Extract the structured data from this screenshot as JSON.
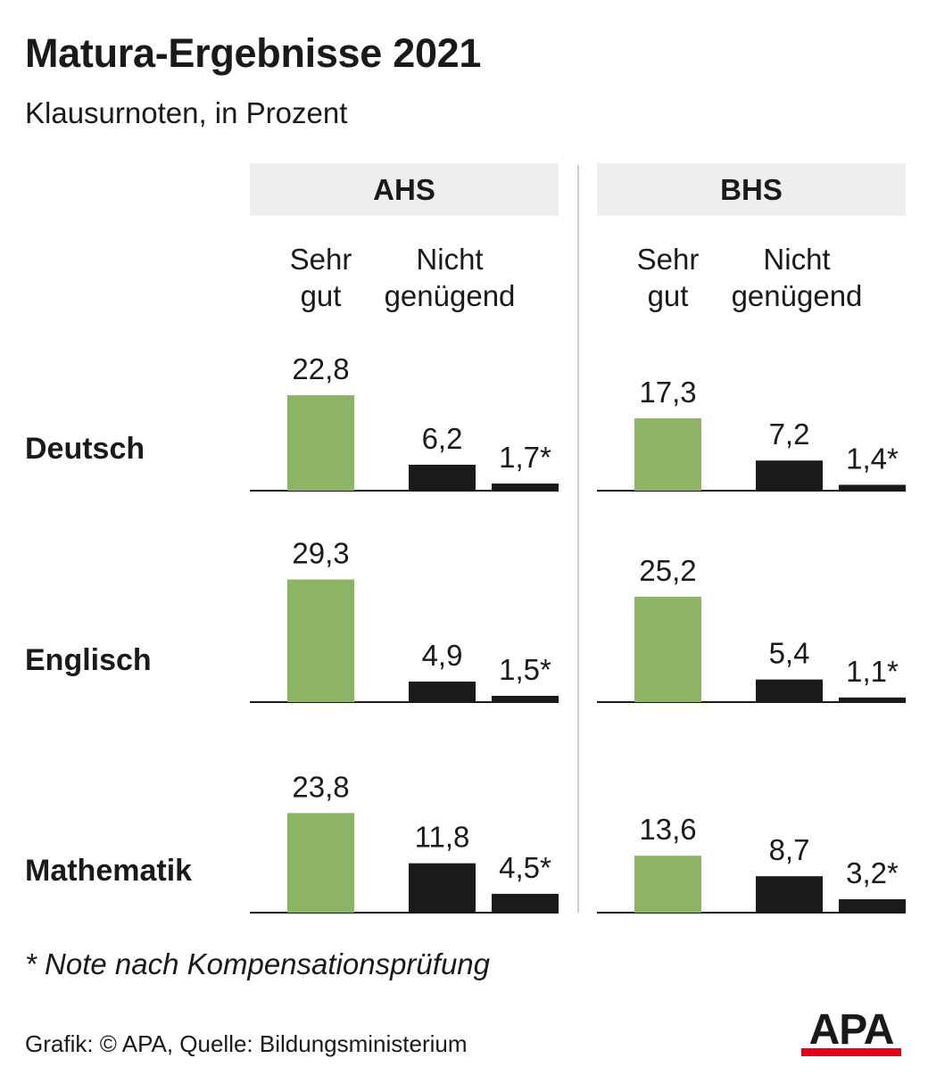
{
  "title": "Matura-Ergebnisse 2021",
  "subtitle": "Klausurnoten, in Prozent",
  "footnote": "* Note nach Kompensationsprüfung",
  "source": "Grafik: © APA, Quelle: Bildungsministerium",
  "logo_text": "APA",
  "colors": {
    "sehr_gut": "#8cb464",
    "nicht_genuegend": "#1a1a1a",
    "panel_header_bg": "#eeeeee",
    "logo_red": "#e2001a"
  },
  "chart_data": {
    "type": "bar",
    "title": "Matura-Ergebnisse 2021",
    "subtitle": "Klausurnoten, in Prozent",
    "panels": [
      "AHS",
      "BHS"
    ],
    "column_headers": [
      [
        "Sehr",
        "gut"
      ],
      [
        "Nicht",
        "genügend"
      ]
    ],
    "subjects": [
      "Deutsch",
      "Englisch",
      "Mathematik"
    ],
    "series": [
      {
        "name": "AHS",
        "rows": [
          {
            "subject": "Deutsch",
            "sehr_gut": 22.8,
            "sehr_gut_label": "22,8",
            "nicht_genuegend": 6.2,
            "nicht_genuegend_label": "6,2",
            "nach_kompensation": 1.7,
            "nach_kompensation_label": "1,7*"
          },
          {
            "subject": "Englisch",
            "sehr_gut": 29.3,
            "sehr_gut_label": "29,3",
            "nicht_genuegend": 4.9,
            "nicht_genuegend_label": "4,9",
            "nach_kompensation": 1.5,
            "nach_kompensation_label": "1,5*"
          },
          {
            "subject": "Mathematik",
            "sehr_gut": 23.8,
            "sehr_gut_label": "23,8",
            "nicht_genuegend": 11.8,
            "nicht_genuegend_label": "11,8",
            "nach_kompensation": 4.5,
            "nach_kompensation_label": "4,5*"
          }
        ]
      },
      {
        "name": "BHS",
        "rows": [
          {
            "subject": "Deutsch",
            "sehr_gut": 17.3,
            "sehr_gut_label": "17,3",
            "nicht_genuegend": 7.2,
            "nicht_genuegend_label": "7,2",
            "nach_kompensation": 1.4,
            "nach_kompensation_label": "1,4*"
          },
          {
            "subject": "Englisch",
            "sehr_gut": 25.2,
            "sehr_gut_label": "25,2",
            "nicht_genuegend": 5.4,
            "nicht_genuegend_label": "5,4",
            "nach_kompensation": 1.1,
            "nach_kompensation_label": "1,1*"
          },
          {
            "subject": "Mathematik",
            "sehr_gut": 13.6,
            "sehr_gut_label": "13,6",
            "nicht_genuegend": 8.7,
            "nicht_genuegend_label": "8,7",
            "nach_kompensation": 3.2,
            "nach_kompensation_label": "3,2*"
          }
        ]
      }
    ]
  }
}
